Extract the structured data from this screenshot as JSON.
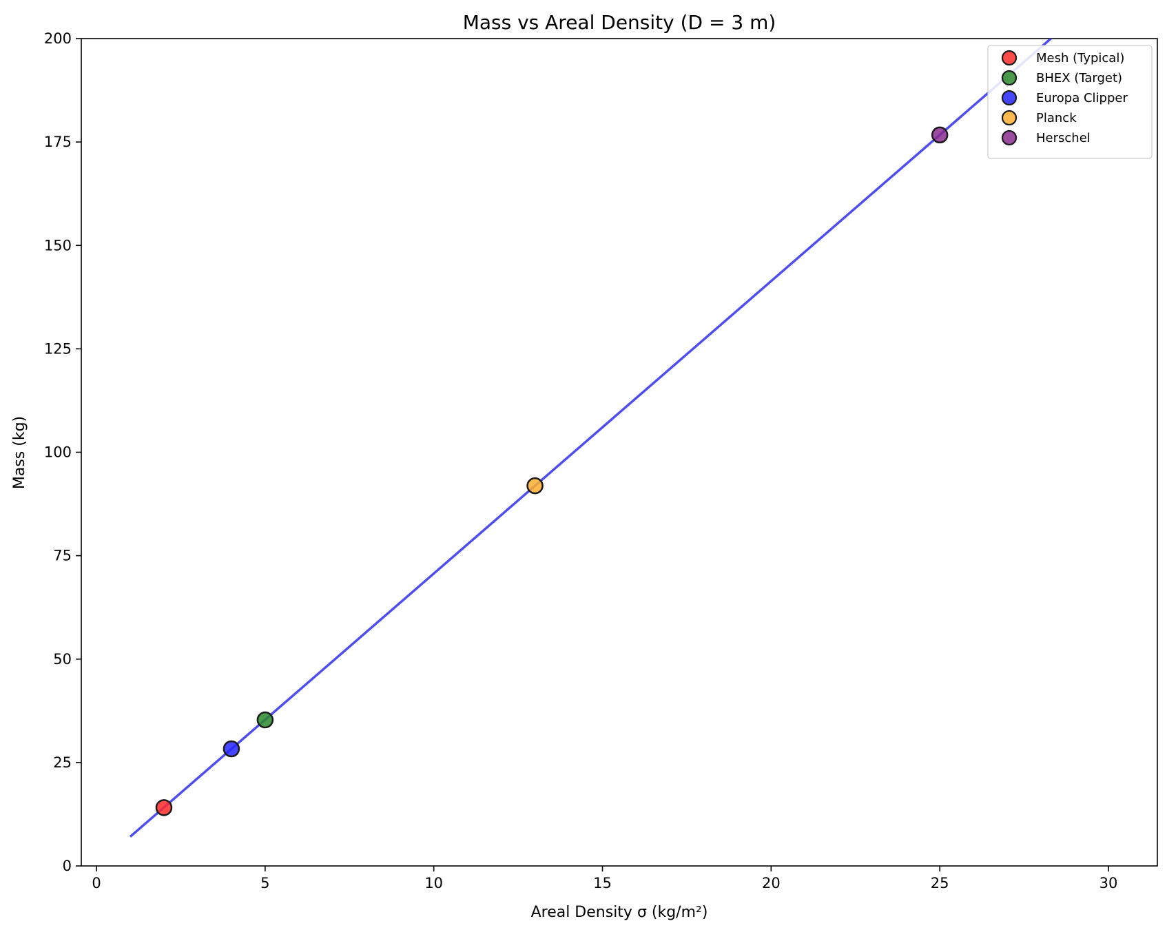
{
  "chart_data": {
    "type": "scatter",
    "title": "Mass vs Areal Density (D = 3 m)",
    "xlabel": "Areal Density σ (kg/m²)",
    "ylabel": "Mass (kg)",
    "xlim": [
      -0.45,
      31.45
    ],
    "ylim": [
      0,
      200
    ],
    "x_ticks": [
      0,
      5,
      10,
      15,
      20,
      25,
      30
    ],
    "y_ticks": [
      0,
      25,
      50,
      75,
      100,
      125,
      150,
      175,
      200
    ],
    "x_tick_labels": [
      "0",
      "5",
      "10",
      "15",
      "20",
      "25",
      "30"
    ],
    "y_tick_labels": [
      "0",
      "25",
      "50",
      "75",
      "100",
      "125",
      "150",
      "175",
      "200"
    ],
    "grid": false,
    "legend_position": "top-right",
    "line": {
      "slope": 7.0686,
      "x_range": [
        1,
        30
      ],
      "color": "#3a3af0"
    },
    "series": [
      {
        "name": "Mesh (Typical)",
        "x": 2,
        "y": 14.1,
        "color": "#ff2a2a"
      },
      {
        "name": "BHEX (Target)",
        "x": 5,
        "y": 35.3,
        "color": "#2a8a2a"
      },
      {
        "name": "Europa Clipper",
        "x": 4,
        "y": 28.3,
        "color": "#2626ff"
      },
      {
        "name": "Planck",
        "x": 13,
        "y": 91.9,
        "color": "#ffae2e"
      },
      {
        "name": "Herschel",
        "x": 25,
        "y": 176.7,
        "color": "#8a2b8f"
      }
    ]
  }
}
